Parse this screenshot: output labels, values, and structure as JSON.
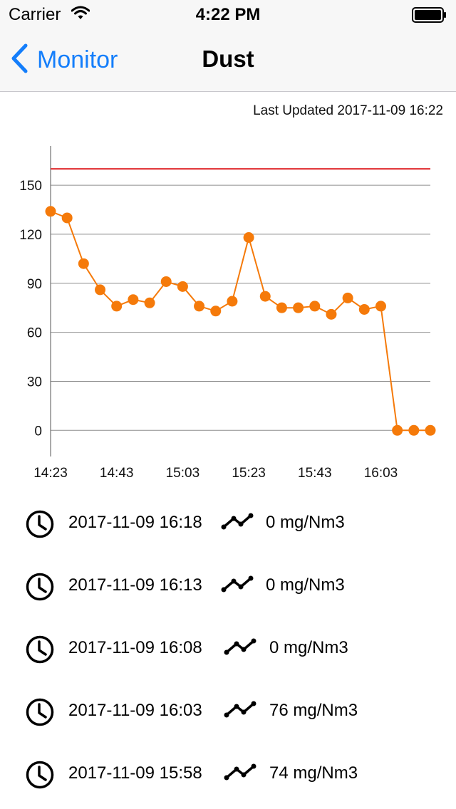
{
  "status_bar": {
    "carrier": "Carrier",
    "time": "4:22 PM"
  },
  "nav": {
    "back_label": "Monitor",
    "title": "Dust"
  },
  "last_updated": "Last Updated 2017-11-09 16:22",
  "colors": {
    "accent": "#147efb",
    "series": "#f57a0a",
    "threshold": "#e0282c"
  },
  "chart_data": {
    "type": "line",
    "title": "",
    "xlabel": "",
    "ylabel": "",
    "x_ticks": [
      "14:23",
      "14:43",
      "15:03",
      "15:23",
      "15:43",
      "16:03"
    ],
    "y_ticks": [
      0,
      30,
      60,
      90,
      120,
      150
    ],
    "ylim": [
      -16,
      174
    ],
    "threshold": 160,
    "grid": true,
    "x": [
      "14:23",
      "14:28",
      "14:33",
      "14:38",
      "14:43",
      "14:48",
      "14:53",
      "14:58",
      "15:03",
      "15:08",
      "15:13",
      "15:18",
      "15:23",
      "15:28",
      "15:33",
      "15:38",
      "15:43",
      "15:48",
      "15:53",
      "15:58",
      "16:03",
      "16:08",
      "16:13",
      "16:18"
    ],
    "series": [
      {
        "values": [
          134,
          130,
          102,
          86,
          76,
          80,
          78,
          91,
          88,
          76,
          73,
          79,
          118,
          82,
          75,
          75,
          76,
          71,
          81,
          74,
          76,
          0,
          0,
          0
        ]
      }
    ]
  },
  "readings": [
    {
      "time": "2017-11-09 16:18",
      "value": "0 mg/Nm3"
    },
    {
      "time": "2017-11-09 16:13",
      "value": "0 mg/Nm3"
    },
    {
      "time": "2017-11-09 16:08",
      "value": "0 mg/Nm3"
    },
    {
      "time": "2017-11-09 16:03",
      "value": "76 mg/Nm3"
    },
    {
      "time": "2017-11-09 15:58",
      "value": "74 mg/Nm3"
    }
  ],
  "icons": {
    "clock": "clock-icon",
    "trend": "trend-icon",
    "back": "chevron-left-icon"
  }
}
